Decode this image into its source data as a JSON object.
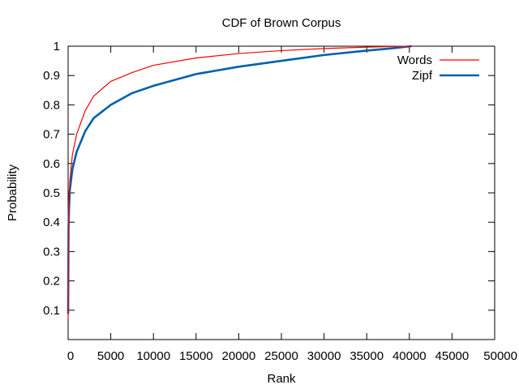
{
  "chart_data": {
    "type": "line",
    "title": "CDF of Brown Corpus",
    "xlabel": "Rank",
    "ylabel": "Probability",
    "xlim": [
      0,
      50000
    ],
    "ylim": [
      0,
      1
    ],
    "x_ticks": [
      0,
      5000,
      10000,
      15000,
      20000,
      25000,
      30000,
      35000,
      40000,
      45000,
      50000
    ],
    "x_tick_labels": [
      "0",
      "5000",
      "10000",
      "15000",
      "20000",
      "25000",
      "30000",
      "35000",
      "40000",
      "45000",
      "50000"
    ],
    "y_ticks": [
      0.1,
      0.2,
      0.3,
      0.4,
      0.5,
      0.6,
      0.7,
      0.8,
      0.9,
      1
    ],
    "y_tick_labels": [
      "0.1",
      "0.2",
      "0.3",
      "0.4",
      "0.5",
      "0.6",
      "0.7",
      "0.8",
      "0.9",
      "1"
    ],
    "grid": false,
    "legend_position": "top-right",
    "series": [
      {
        "name": "Words",
        "color": "#ff0000",
        "line_style": "thin",
        "x": [
          1,
          50,
          100,
          200,
          500,
          1000,
          2000,
          3000,
          5000,
          7500,
          10000,
          15000,
          20000,
          25000,
          30000,
          35000,
          38000,
          40200
        ],
        "y": [
          0.07,
          0.4,
          0.47,
          0.54,
          0.63,
          0.7,
          0.78,
          0.83,
          0.88,
          0.91,
          0.935,
          0.96,
          0.975,
          0.985,
          0.992,
          0.997,
          0.999,
          1.0
        ]
      },
      {
        "name": "Zipf",
        "color": "#0060ad",
        "line_style": "thick",
        "x": [
          1,
          50,
          100,
          200,
          500,
          1000,
          2000,
          3000,
          5000,
          7500,
          10000,
          15000,
          20000,
          25000,
          30000,
          35000,
          38000,
          40200
        ],
        "y": [
          0.09,
          0.38,
          0.44,
          0.51,
          0.58,
          0.64,
          0.71,
          0.755,
          0.8,
          0.84,
          0.865,
          0.905,
          0.93,
          0.95,
          0.97,
          0.985,
          0.993,
          1.0
        ]
      }
    ]
  }
}
